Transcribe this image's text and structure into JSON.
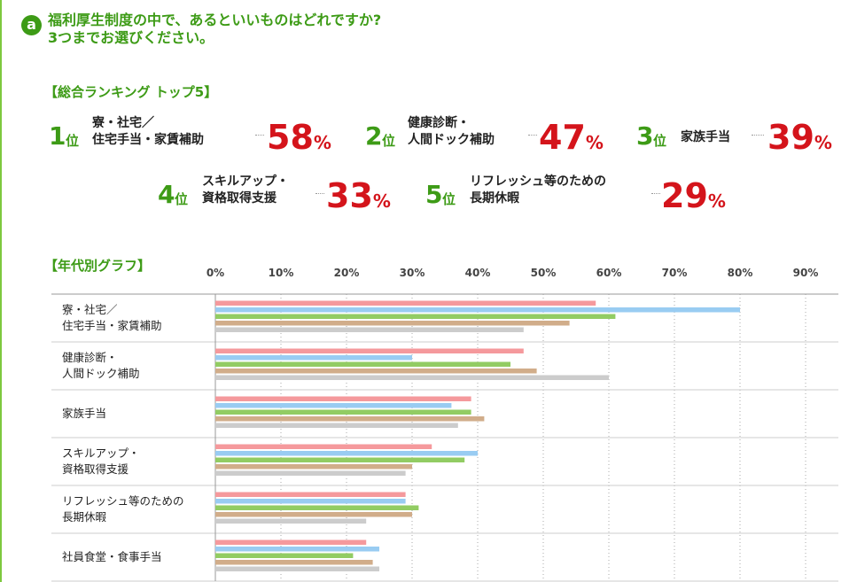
{
  "question": {
    "badge": "a",
    "line1": "福利厚生制度の中で、あるといいものはどれですか?",
    "line2": "3つまでお選びください。"
  },
  "ranking": {
    "title": "【総合ランキング トップ5】",
    "items": [
      {
        "num": "1",
        "suffix": "位",
        "label_lines": [
          "寮・社宅／",
          "住宅手当・家賃補助"
        ],
        "pct_value": "58",
        "pct_unit": "%"
      },
      {
        "num": "2",
        "suffix": "位",
        "label_lines": [
          "健康診断・",
          "人間ドック補助"
        ],
        "pct_value": "47",
        "pct_unit": "%"
      },
      {
        "num": "3",
        "suffix": "位",
        "label_lines": [
          "家族手当"
        ],
        "pct_value": "39",
        "pct_unit": "%"
      },
      {
        "num": "4",
        "suffix": "位",
        "label_lines": [
          "スキルアップ・",
          "資格取得支援"
        ],
        "pct_value": "33",
        "pct_unit": "%"
      },
      {
        "num": "5",
        "suffix": "位",
        "label_lines": [
          "リフレッシュ等のための",
          "長期休暇"
        ],
        "pct_value": "29",
        "pct_unit": "%"
      }
    ]
  },
  "chart_title": "【年代別グラフ】",
  "colors": {
    "accent": "#3d9b16",
    "highlight": "#d4141b",
    "series": [
      "#f5999c",
      "#99ccf2",
      "#92cc63",
      "#d1ad8a",
      "#cccccc"
    ]
  },
  "chart_data": {
    "type": "bar",
    "orientation": "horizontal",
    "categories": [
      [
        "寮・社宅／",
        "住宅手当・家賃補助"
      ],
      [
        "健康診断・",
        "人間ドック補助"
      ],
      [
        "家族手当"
      ],
      [
        "スキルアップ・",
        "資格取得支援"
      ],
      [
        "リフレッシュ等のための",
        "長期休暇"
      ],
      [
        "社員食堂・食事手当"
      ]
    ],
    "series": [
      {
        "values": [
          58,
          47,
          39,
          33,
          29,
          23
        ]
      },
      {
        "values": [
          80,
          30,
          36,
          40,
          29,
          25
        ]
      },
      {
        "values": [
          61,
          45,
          39,
          38,
          31,
          21
        ]
      },
      {
        "values": [
          54,
          49,
          41,
          30,
          30,
          24
        ]
      },
      {
        "values": [
          47,
          60,
          37,
          29,
          23,
          25
        ]
      }
    ],
    "xlim": [
      0,
      95
    ],
    "ticks": [
      0,
      10,
      20,
      30,
      40,
      50,
      60,
      70,
      80,
      90
    ],
    "tick_labels": [
      "0%",
      "10%",
      "20%",
      "30%",
      "40%",
      "50%",
      "60%",
      "70%",
      "80%",
      "90%"
    ],
    "grid": true,
    "legend": "none"
  }
}
